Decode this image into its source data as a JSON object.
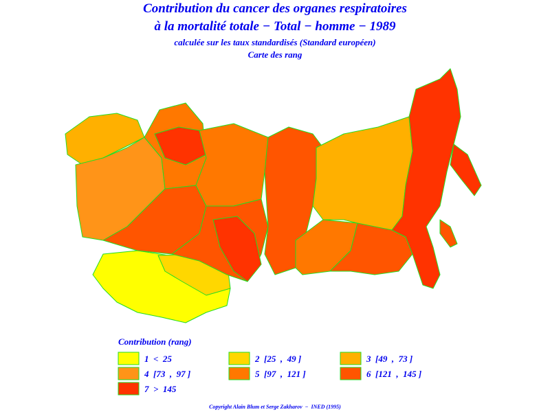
{
  "header": {
    "title_line1": "Contribution du cancer des organes respiratoires",
    "title_line2": "à la mortalité totale − Total − homme − 1989",
    "subtitle": "calculée sur les taux standardisés (Standard européen)",
    "map_kind": "Carte des rang"
  },
  "legend": {
    "title": "Contribution (rang)",
    "classes": [
      {
        "label": "1  <  25",
        "color": "#ffff00"
      },
      {
        "label": "2  [25  ,  49 ]",
        "color": "#ffd700"
      },
      {
        "label": "3  [49  ,  73 ]",
        "color": "#ffb000"
      },
      {
        "label": "4  [73  ,  97 ]",
        "color": "#ff9418"
      },
      {
        "label": "5  [97  ,  121 ]",
        "color": "#ff7800"
      },
      {
        "label": "6  [121  ,  145 ]",
        "color": "#ff5500"
      },
      {
        "label": "7  >  145",
        "color": "#ff3300"
      }
    ]
  },
  "footer": {
    "copyright": "Copyright Alain Blum et Serge Zakharov  −  INED (1995)"
  }
}
